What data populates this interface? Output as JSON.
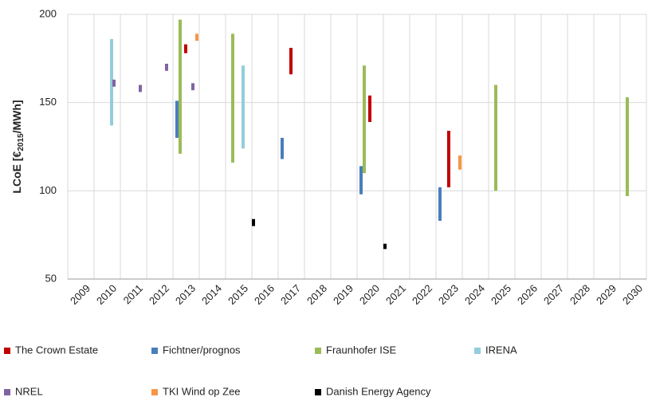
{
  "chart_data": {
    "type": "range",
    "ylabel": {
      "main": "LCoE [€",
      "sub": "2015",
      "unit": "/MWh]"
    },
    "categories": [
      "2009",
      "2010",
      "2011",
      "2012",
      "2013",
      "2014",
      "2015",
      "2016",
      "2017",
      "2018",
      "2019",
      "2020",
      "2021",
      "2022",
      "2023",
      "2024",
      "2025",
      "2026",
      "2027",
      "2028",
      "2029",
      "2030"
    ],
    "ylim": [
      50,
      200
    ],
    "yticks": [
      50,
      100,
      150,
      200
    ],
    "grid": true,
    "legend": "bottom",
    "series": [
      {
        "name": "The Crown Estate",
        "color": "#c00000",
        "low": [
          null,
          null,
          null,
          null,
          178,
          null,
          null,
          null,
          166,
          null,
          null,
          139,
          null,
          null,
          102,
          null,
          null,
          null,
          null,
          null,
          null,
          null
        ],
        "high": [
          null,
          null,
          null,
          null,
          183,
          null,
          null,
          null,
          181,
          null,
          null,
          154,
          null,
          null,
          134,
          null,
          null,
          null,
          null,
          null,
          null,
          null
        ]
      },
      {
        "name": "Fichtner/prognos",
        "color": "#4a7ebb",
        "low": [
          null,
          null,
          null,
          null,
          130,
          null,
          null,
          null,
          118,
          null,
          null,
          98,
          null,
          null,
          83,
          null,
          null,
          null,
          null,
          null,
          null,
          null
        ],
        "high": [
          null,
          null,
          null,
          null,
          151,
          null,
          null,
          null,
          130,
          null,
          null,
          114,
          null,
          null,
          102,
          null,
          null,
          null,
          null,
          null,
          null,
          null
        ]
      },
      {
        "name": "Fraunhofer ISE",
        "color": "#9bbb59",
        "low": [
          null,
          null,
          null,
          null,
          121,
          null,
          116,
          null,
          null,
          null,
          null,
          110,
          null,
          null,
          null,
          null,
          100,
          null,
          null,
          null,
          null,
          97
        ],
        "high": [
          null,
          null,
          null,
          null,
          197,
          null,
          189,
          null,
          null,
          null,
          null,
          171,
          null,
          null,
          null,
          null,
          160,
          null,
          null,
          null,
          null,
          153
        ]
      },
      {
        "name": "IRENA",
        "color": "#93cddd",
        "low": [
          null,
          137,
          null,
          null,
          null,
          null,
          124,
          null,
          null,
          null,
          null,
          null,
          null,
          null,
          null,
          null,
          null,
          null,
          null,
          null,
          null,
          null
        ],
        "high": [
          null,
          186,
          null,
          null,
          null,
          null,
          171,
          null,
          null,
          null,
          null,
          null,
          null,
          null,
          null,
          null,
          null,
          null,
          null,
          null,
          null,
          null
        ]
      },
      {
        "name": "NREL",
        "color": "#8064a2",
        "low": [
          null,
          159,
          156,
          168,
          157,
          null,
          null,
          null,
          null,
          null,
          null,
          null,
          null,
          null,
          null,
          null,
          null,
          null,
          null,
          null,
          null,
          null
        ],
        "high": [
          null,
          163,
          160,
          172,
          161,
          null,
          null,
          null,
          null,
          null,
          null,
          null,
          null,
          null,
          null,
          null,
          null,
          null,
          null,
          null,
          null,
          null
        ]
      },
      {
        "name": "TKI Wind op Zee",
        "color": "#f79646",
        "low": [
          null,
          null,
          null,
          null,
          185,
          null,
          null,
          null,
          null,
          null,
          null,
          null,
          null,
          null,
          112,
          null,
          null,
          null,
          null,
          null,
          null,
          null
        ],
        "high": [
          null,
          null,
          null,
          null,
          189,
          null,
          null,
          null,
          null,
          null,
          null,
          null,
          null,
          null,
          120,
          null,
          null,
          null,
          null,
          null,
          null,
          null
        ]
      },
      {
        "name": "Danish Energy Agency",
        "color": "#000000",
        "low": [
          null,
          null,
          null,
          null,
          null,
          null,
          null,
          80,
          null,
          null,
          null,
          null,
          67,
          null,
          null,
          null,
          null,
          null,
          null,
          null,
          null,
          null
        ],
        "high": [
          null,
          null,
          null,
          null,
          null,
          null,
          null,
          84,
          null,
          null,
          null,
          null,
          70,
          null,
          null,
          null,
          null,
          null,
          null,
          null,
          null,
          null
        ]
      }
    ]
  }
}
